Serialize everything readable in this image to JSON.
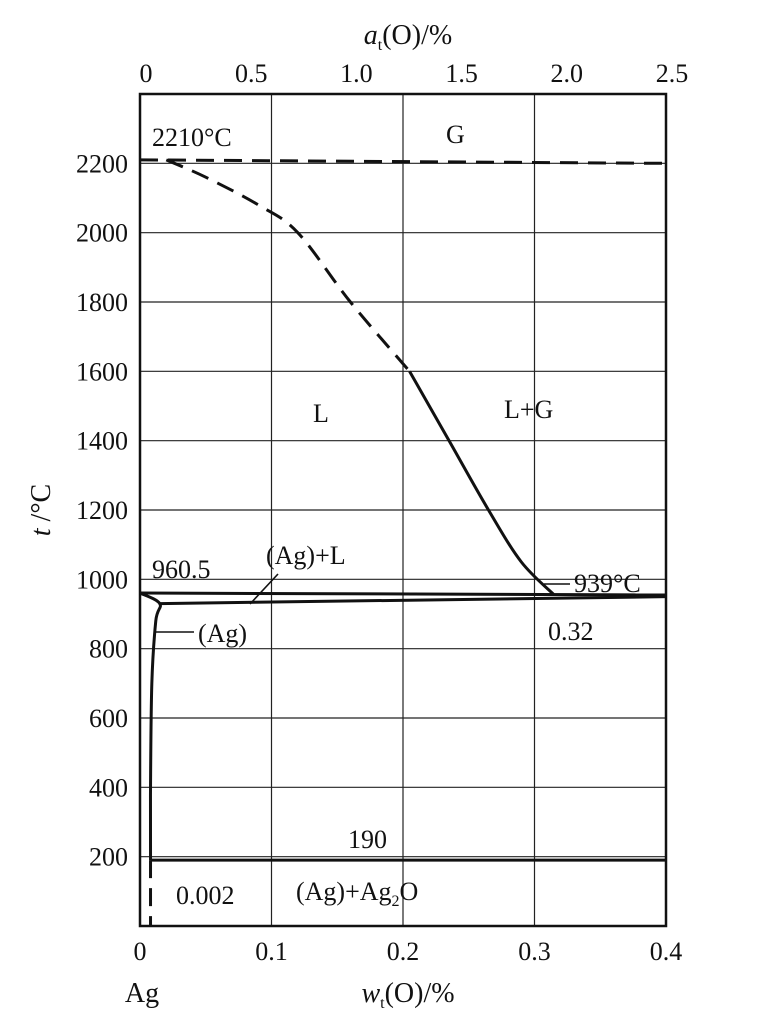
{
  "chart_data": {
    "type": "line",
    "xlabel_bottom": "w t(O)/%",
    "xlabel_bottom_parts": {
      "italic": "w",
      "sub": "t",
      "rest": "(O)/%"
    },
    "xlabel_top_parts": {
      "italic": "a",
      "sub": "t",
      "rest": "(O)/%"
    },
    "ylabel_parts": {
      "italic": "t",
      "rest": " /°C"
    },
    "xlim_bottom": [
      0,
      0.4
    ],
    "xlim_top": [
      0,
      2.5
    ],
    "ylim": [
      0,
      2400
    ],
    "grid": true,
    "bottom_ticks": [
      "0",
      "0.1",
      "0.2",
      "0.3",
      "0.4"
    ],
    "bottom_tick_values": [
      0,
      0.1,
      0.2,
      0.3,
      0.4
    ],
    "top_ticks": [
      "0",
      "0.5",
      "1.0",
      "1.5",
      "2.0",
      "2.5"
    ],
    "top_tick_values": [
      0,
      0.5,
      1.0,
      1.5,
      2.0,
      2.5
    ],
    "y_ticks": [
      "200",
      "400",
      "600",
      "800",
      "1000",
      "1200",
      "1400",
      "1600",
      "1800",
      "2000",
      "2200"
    ],
    "y_tick_values": [
      200,
      400,
      600,
      800,
      1000,
      1200,
      1400,
      1600,
      1800,
      2000,
      2200
    ],
    "element_label": "Ag",
    "series": [
      {
        "style": "dashed",
        "points": [
          [
            0,
            2210
          ],
          [
            0.4,
            2200
          ]
        ]
      },
      {
        "style": "dashed",
        "points": [
          [
            0.02,
            2210
          ],
          [
            0.05,
            2160
          ],
          [
            0.09,
            2080
          ],
          [
            0.12,
            2000
          ],
          [
            0.16,
            1800
          ],
          [
            0.205,
            1600
          ]
        ]
      },
      {
        "style": "solid",
        "points": [
          [
            0.205,
            1600
          ],
          [
            0.235,
            1400
          ],
          [
            0.265,
            1200
          ],
          [
            0.29,
            1050
          ],
          [
            0.315,
            955
          ]
        ]
      },
      {
        "style": "solid",
        "points": [
          [
            0,
            960.5
          ],
          [
            0.4,
            955
          ]
        ]
      },
      {
        "style": "solid",
        "points": [
          [
            0.015,
            930
          ],
          [
            0.4,
            950
          ]
        ]
      },
      {
        "style": "solid",
        "points": [
          [
            0,
            960.5
          ],
          [
            0.015,
            930
          ],
          [
            0.012,
            880
          ],
          [
            0.009,
            700
          ],
          [
            0.008,
            400
          ],
          [
            0.008,
            190
          ]
        ]
      },
      {
        "style": "solid",
        "points": [
          [
            0.008,
            190
          ],
          [
            0.4,
            190
          ]
        ]
      },
      {
        "style": "dashed",
        "points": [
          [
            0.008,
            190
          ],
          [
            0.008,
            0
          ]
        ]
      }
    ],
    "annotations": {
      "t2210": "2210°C",
      "G": "G",
      "L": "L",
      "LG": "L+G",
      "t960": "960.5",
      "AgL": "(Ag)+L",
      "t939": "939°C",
      "c032": "0.32",
      "Ag": "(Ag)",
      "t190": "190",
      "c0002": "0.002",
      "AgAg2O_main": "(Ag)+Ag",
      "AgAg2O_sub": "2",
      "AgAg2O_tail": "O"
    }
  }
}
